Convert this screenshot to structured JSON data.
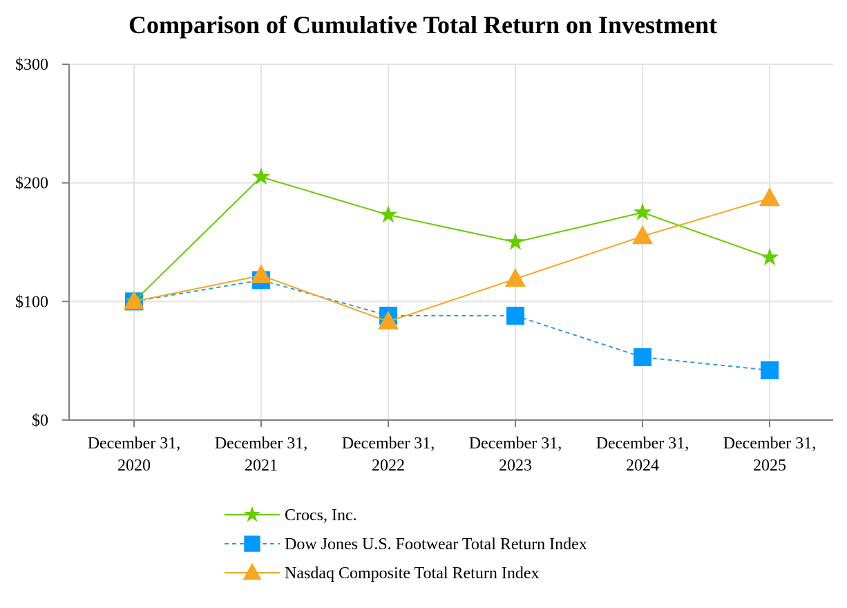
{
  "chart_data": {
    "type": "line",
    "title": "Comparison of Cumulative Total Return on Investment",
    "xlabel": "",
    "ylabel": "",
    "categories": [
      [
        "December 31,",
        "2020"
      ],
      [
        "December 31,",
        "2021"
      ],
      [
        "December 31,",
        "2022"
      ],
      [
        "December 31,",
        "2023"
      ],
      [
        "December 31,",
        "2024"
      ],
      [
        "December 31,",
        "2025"
      ]
    ],
    "ylim": [
      0,
      300
    ],
    "yticks": [
      0,
      100,
      200,
      300
    ],
    "ytick_labels": [
      "$0",
      "$100",
      "$200",
      "$300"
    ],
    "grid": true,
    "legend_position": "bottom-center",
    "series": [
      {
        "name": "Crocs, Inc.",
        "values": [
          100,
          205,
          173,
          150,
          175,
          137
        ],
        "color": "#66cc00",
        "marker": "star",
        "line_style": "solid"
      },
      {
        "name": "Dow Jones U.S. Footwear Total Return Index",
        "values": [
          100,
          118,
          88,
          88,
          53,
          42
        ],
        "color": "#0099ff",
        "line_color": "#2b9bd6",
        "marker": "square",
        "line_style": "dashed"
      },
      {
        "name": "Nasdaq Composite Total Return Index",
        "values": [
          100,
          122,
          83,
          119,
          155,
          187
        ],
        "color": "#f5a623",
        "marker": "triangle",
        "line_style": "solid"
      }
    ]
  }
}
